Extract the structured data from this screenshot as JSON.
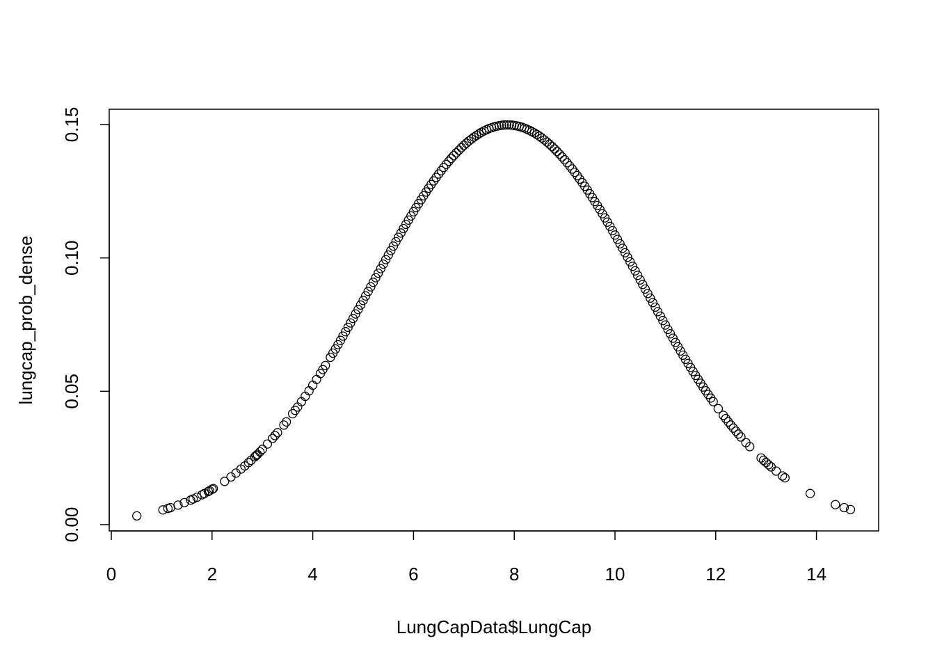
{
  "chart_data": {
    "type": "scatter",
    "title": "",
    "xlabel": "LungCapData$LungCap",
    "ylabel": "lungcap_prob_dense",
    "xlim": [
      0,
      15
    ],
    "ylim": [
      0,
      0.15
    ],
    "x_ticks": [
      "0",
      "2",
      "4",
      "6",
      "8",
      "10",
      "12",
      "14"
    ],
    "y_ticks": [
      "0.00",
      "0.05",
      "0.10",
      "0.15"
    ],
    "grid": false,
    "legend": "none",
    "point_color": "#000000",
    "distribution": {
      "mean": 7.863,
      "sd": 2.662
    },
    "x": [
      0.507,
      1.025,
      1.125,
      1.175,
      1.325,
      1.45,
      1.575,
      1.625,
      1.7,
      1.8,
      1.85,
      1.925,
      1.95,
      2.0,
      2.025,
      2.25,
      2.375,
      2.475,
      2.575,
      2.65,
      2.725,
      2.775,
      2.85,
      2.875,
      2.9,
      2.95,
      3.0,
      3.1,
      3.2,
      3.25,
      3.3,
      3.425,
      3.475,
      3.6,
      3.65,
      3.7,
      3.775,
      3.85,
      3.925,
      4.0,
      4.075,
      4.15,
      4.2,
      4.25,
      4.35,
      4.4,
      4.45,
      4.5,
      4.55,
      4.6,
      4.65,
      4.7,
      4.75,
      4.8,
      4.85,
      4.9,
      4.95,
      5.0,
      5.05,
      5.1,
      5.15,
      5.2,
      5.25,
      5.3,
      5.35,
      5.4,
      5.45,
      5.5,
      5.55,
      5.6,
      5.65,
      5.7,
      5.75,
      5.8,
      5.85,
      5.9,
      5.95,
      6.0,
      6.05,
      6.1,
      6.15,
      6.2,
      6.25,
      6.3,
      6.35,
      6.4,
      6.45,
      6.5,
      6.55,
      6.6,
      6.65,
      6.7,
      6.75,
      6.8,
      6.85,
      6.9,
      6.95,
      7.0,
      7.05,
      7.1,
      7.15,
      7.2,
      7.25,
      7.3,
      7.35,
      7.4,
      7.45,
      7.5,
      7.55,
      7.6,
      7.65,
      7.7,
      7.75,
      7.8,
      7.85,
      7.9,
      7.95,
      8.0,
      8.05,
      8.1,
      8.15,
      8.2,
      8.25,
      8.3,
      8.35,
      8.4,
      8.45,
      8.5,
      8.55,
      8.6,
      8.65,
      8.7,
      8.75,
      8.8,
      8.85,
      8.9,
      8.95,
      9.0,
      9.05,
      9.1,
      9.15,
      9.2,
      9.25,
      9.3,
      9.35,
      9.4,
      9.45,
      9.5,
      9.55,
      9.6,
      9.65,
      9.7,
      9.75,
      9.8,
      9.85,
      9.9,
      9.95,
      10.0,
      10.05,
      10.1,
      10.15,
      10.2,
      10.25,
      10.3,
      10.35,
      10.4,
      10.45,
      10.5,
      10.55,
      10.6,
      10.65,
      10.7,
      10.75,
      10.8,
      10.85,
      10.9,
      10.95,
      11.0,
      11.05,
      11.1,
      11.15,
      11.2,
      11.25,
      11.3,
      11.35,
      11.4,
      11.45,
      11.5,
      11.55,
      11.6,
      11.65,
      11.7,
      11.75,
      11.8,
      11.85,
      11.9,
      11.95,
      12.05,
      12.15,
      12.2,
      12.25,
      12.3,
      12.35,
      12.4,
      12.45,
      12.5,
      12.6,
      12.675,
      12.9,
      12.95,
      13.0,
      13.05,
      13.1,
      13.2,
      13.325,
      13.375,
      13.875,
      14.375,
      14.55,
      14.675
    ]
  }
}
